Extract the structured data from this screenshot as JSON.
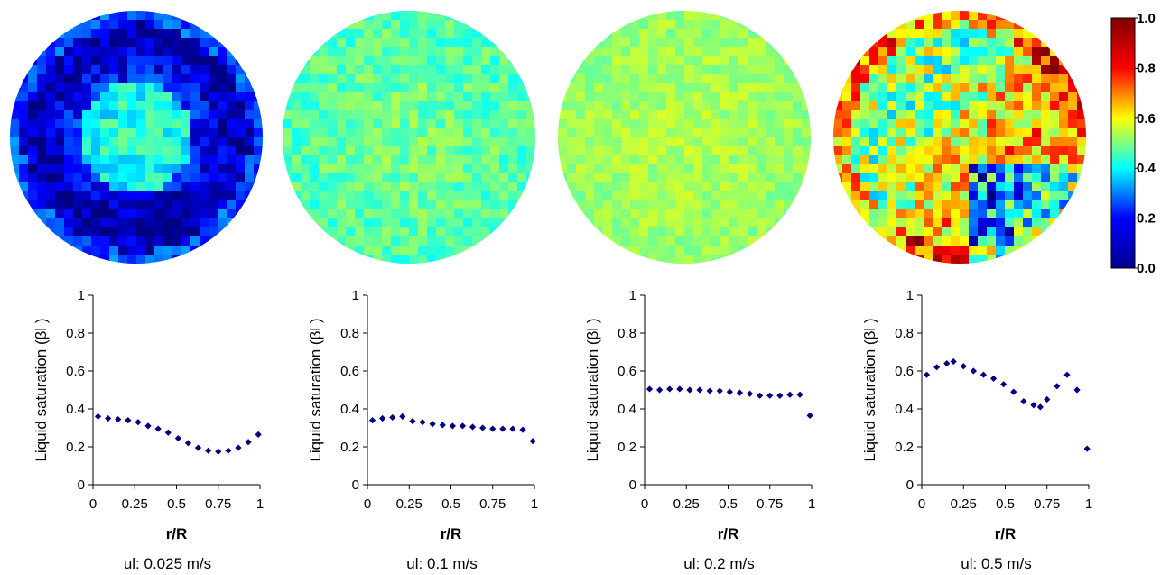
{
  "chart_data": [
    {
      "type": "scatter",
      "xlabel": "r/R",
      "ylabel": "Liquid saturation (βl )",
      "caption": "ul: 0.025 m/s",
      "xlim": [
        0,
        1
      ],
      "ylim": [
        0,
        1
      ],
      "xticks": [
        "0",
        "0.25",
        "0.5",
        "0.75",
        "1"
      ],
      "yticks": [
        "0",
        "0.2",
        "0.4",
        "0.6",
        "0.8",
        "1"
      ],
      "grid": false,
      "marker_color": "#000080",
      "points": [
        [
          0.03,
          0.36
        ],
        [
          0.09,
          0.35
        ],
        [
          0.15,
          0.345
        ],
        [
          0.21,
          0.34
        ],
        [
          0.27,
          0.33
        ],
        [
          0.33,
          0.31
        ],
        [
          0.39,
          0.295
        ],
        [
          0.45,
          0.275
        ],
        [
          0.51,
          0.245
        ],
        [
          0.57,
          0.22
        ],
        [
          0.63,
          0.195
        ],
        [
          0.69,
          0.18
        ],
        [
          0.75,
          0.175
        ],
        [
          0.81,
          0.18
        ],
        [
          0.87,
          0.195
        ],
        [
          0.93,
          0.225
        ],
        [
          0.99,
          0.265
        ]
      ],
      "map_style": "low"
    },
    {
      "type": "scatter",
      "xlabel": "r/R",
      "ylabel": "Liquid saturation (βl )",
      "caption": "ul: 0.1 m/s",
      "xlim": [
        0,
        1
      ],
      "ylim": [
        0,
        1
      ],
      "xticks": [
        "0",
        "0.25",
        "0.5",
        "0.75",
        "1"
      ],
      "yticks": [
        "0",
        "0.2",
        "0.4",
        "0.6",
        "0.8",
        "1"
      ],
      "grid": false,
      "marker_color": "#000080",
      "points": [
        [
          0.03,
          0.34
        ],
        [
          0.09,
          0.35
        ],
        [
          0.15,
          0.355
        ],
        [
          0.21,
          0.36
        ],
        [
          0.27,
          0.335
        ],
        [
          0.33,
          0.33
        ],
        [
          0.39,
          0.32
        ],
        [
          0.45,
          0.315
        ],
        [
          0.51,
          0.31
        ],
        [
          0.57,
          0.31
        ],
        [
          0.63,
          0.305
        ],
        [
          0.69,
          0.3
        ],
        [
          0.75,
          0.295
        ],
        [
          0.81,
          0.295
        ],
        [
          0.87,
          0.295
        ],
        [
          0.93,
          0.29
        ],
        [
          0.99,
          0.23
        ]
      ],
      "map_style": "cyan"
    },
    {
      "type": "scatter",
      "xlabel": "r/R",
      "ylabel": "Liquid saturation (βl )",
      "caption": "ul: 0.2 m/s",
      "xlim": [
        0,
        1
      ],
      "ylim": [
        0,
        1
      ],
      "xticks": [
        "0",
        "0.25",
        "0.5",
        "0.75",
        "1"
      ],
      "yticks": [
        "0",
        "0.2",
        "0.4",
        "0.6",
        "0.8",
        "1"
      ],
      "grid": false,
      "marker_color": "#000080",
      "points": [
        [
          0.03,
          0.505
        ],
        [
          0.09,
          0.5
        ],
        [
          0.15,
          0.505
        ],
        [
          0.21,
          0.505
        ],
        [
          0.27,
          0.5
        ],
        [
          0.33,
          0.5
        ],
        [
          0.39,
          0.495
        ],
        [
          0.45,
          0.495
        ],
        [
          0.51,
          0.49
        ],
        [
          0.57,
          0.485
        ],
        [
          0.63,
          0.48
        ],
        [
          0.69,
          0.47
        ],
        [
          0.75,
          0.47
        ],
        [
          0.81,
          0.47
        ],
        [
          0.87,
          0.475
        ],
        [
          0.93,
          0.475
        ],
        [
          0.99,
          0.365
        ]
      ],
      "map_style": "green"
    },
    {
      "type": "scatter",
      "xlabel": "r/R",
      "ylabel": "Liquid saturation (βl )",
      "caption": "ul: 0.5 m/s",
      "xlim": [
        0,
        1
      ],
      "ylim": [
        0,
        1
      ],
      "xticks": [
        "0",
        "0.25",
        "0.5",
        "0.75",
        "1"
      ],
      "yticks": [
        "0",
        "0.2",
        "0.4",
        "0.6",
        "0.8",
        "1"
      ],
      "grid": false,
      "marker_color": "#000080",
      "points": [
        [
          0.03,
          0.58
        ],
        [
          0.09,
          0.62
        ],
        [
          0.15,
          0.64
        ],
        [
          0.19,
          0.65
        ],
        [
          0.25,
          0.625
        ],
        [
          0.31,
          0.6
        ],
        [
          0.37,
          0.58
        ],
        [
          0.43,
          0.56
        ],
        [
          0.49,
          0.53
        ],
        [
          0.55,
          0.49
        ],
        [
          0.61,
          0.44
        ],
        [
          0.67,
          0.42
        ],
        [
          0.71,
          0.41
        ],
        [
          0.75,
          0.45
        ],
        [
          0.81,
          0.52
        ],
        [
          0.87,
          0.58
        ],
        [
          0.93,
          0.5
        ],
        [
          0.99,
          0.19
        ]
      ],
      "map_style": "high"
    }
  ],
  "colorbar": {
    "min": 0,
    "max": 1,
    "ticks": [
      "0.0",
      "0.2",
      "0.4",
      "0.6",
      "0.8",
      "1.0"
    ],
    "colormap": [
      "#00008F",
      "#0000FF",
      "#00FFFF",
      "#FFFF00",
      "#FF0000",
      "#800000"
    ]
  }
}
